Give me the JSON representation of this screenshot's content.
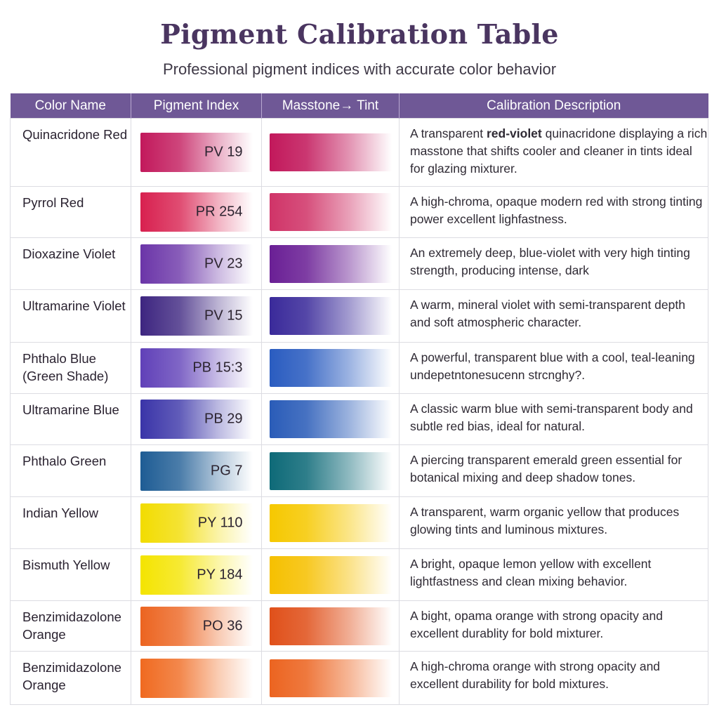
{
  "header": {
    "title": "Pigment Calibration Table",
    "subtitle": "Professional pigment indices with accurate color behavior"
  },
  "table": {
    "header_color": "#6f5896",
    "columns": [
      "Color Name",
      "Pigment Index",
      "Masstone→ Tint",
      "Calibration Description"
    ],
    "rows": [
      {
        "name": "Quinacridone Red",
        "index": "PV 19",
        "color": "#c2185b",
        "index_color": "#c2185b",
        "description_pre": "A transparent ",
        "description_bold": "red-violet",
        "description": " quinacridone displaying a rich masstone that shifts cooler and cleaner in tints ideal for glazing mixturer."
      },
      {
        "name": "Pyrrol Red",
        "index": "PR 254",
        "color": "#d03468",
        "index_color": "#d8204f",
        "description_pre": "",
        "description_bold": "",
        "description": "A high-chroma, opaque modern red with strong tinting power excellent lighfastness."
      },
      {
        "name": "Dioxazine Violet",
        "index": "PV 23",
        "color": "#6a1f95",
        "index_color": "#6b35a8",
        "description_pre": "",
        "description_bold": "",
        "description": "An extremely deep, blue-violet with very high tinting strength, producing intense, dark"
      },
      {
        "name": "Ultramarine Violet",
        "index": "PV 15",
        "color": "#3a2a9a",
        "index_color": "#3d2580",
        "description_pre": "",
        "description_bold": "",
        "description": "A warm, mineral violet with semi-transparent depth and soft atmospheric character."
      },
      {
        "name": "Phthalo Blue (Green Shade)",
        "index": "PB 15:3",
        "color": "#2a5cc0",
        "index_color": "#6040b8",
        "description_pre": "",
        "description_bold": "",
        "description": "A powerful, transparent blue with a cool, teal-leaning undepetntonesucenn strcnghy?."
      },
      {
        "name": "Ultramarine Blue",
        "index": "PB 29",
        "color": "#2a5cb8",
        "index_color": "#3a34a8",
        "description_pre": "",
        "description_bold": "",
        "description": "A classic warm blue with semi-transparent body and subtle red bias, ideal for natural."
      },
      {
        "name": "Phthalo Green",
        "index": "PG 7",
        "color": "#0e6a78",
        "index_color": "#1e5c94",
        "description_pre": "",
        "description_bold": "",
        "description": "A piercing transparent emerald green essential for botanical mixing and deep shadow tones."
      },
      {
        "name": "Indian Yellow",
        "index": "PY 110",
        "color": "#f6c800",
        "index_color": "#f2dc00",
        "description_pre": "",
        "description_bold": "",
        "description": "A transparent, warm organic yellow that produces glowing tints and luminous mixtures."
      },
      {
        "name": "Bismuth Yellow",
        "index": "PY 184",
        "color": "#f6c000",
        "index_color": "#f4e400",
        "description_pre": "",
        "description_bold": "",
        "description": "A bright, opaque lemon yellow with excellent lightfastness and clean mixing behavior."
      },
      {
        "name": "Benzimidazolone Orange",
        "index": "PO 36",
        "color": "#e0501a",
        "index_color": "#ec6420",
        "description_pre": "",
        "description_bold": "",
        "description": "A bight, opama orange with strong opacity and excellent durablity for bold mixturer."
      },
      {
        "name": "Benzimidazolone Orange",
        "index": "",
        "color": "#ec6420",
        "index_color": "#f06a20",
        "description_pre": "",
        "description_bold": "",
        "description": "A high-chroma orange with strong opacity and excellent durability for bold mixtures."
      }
    ]
  }
}
